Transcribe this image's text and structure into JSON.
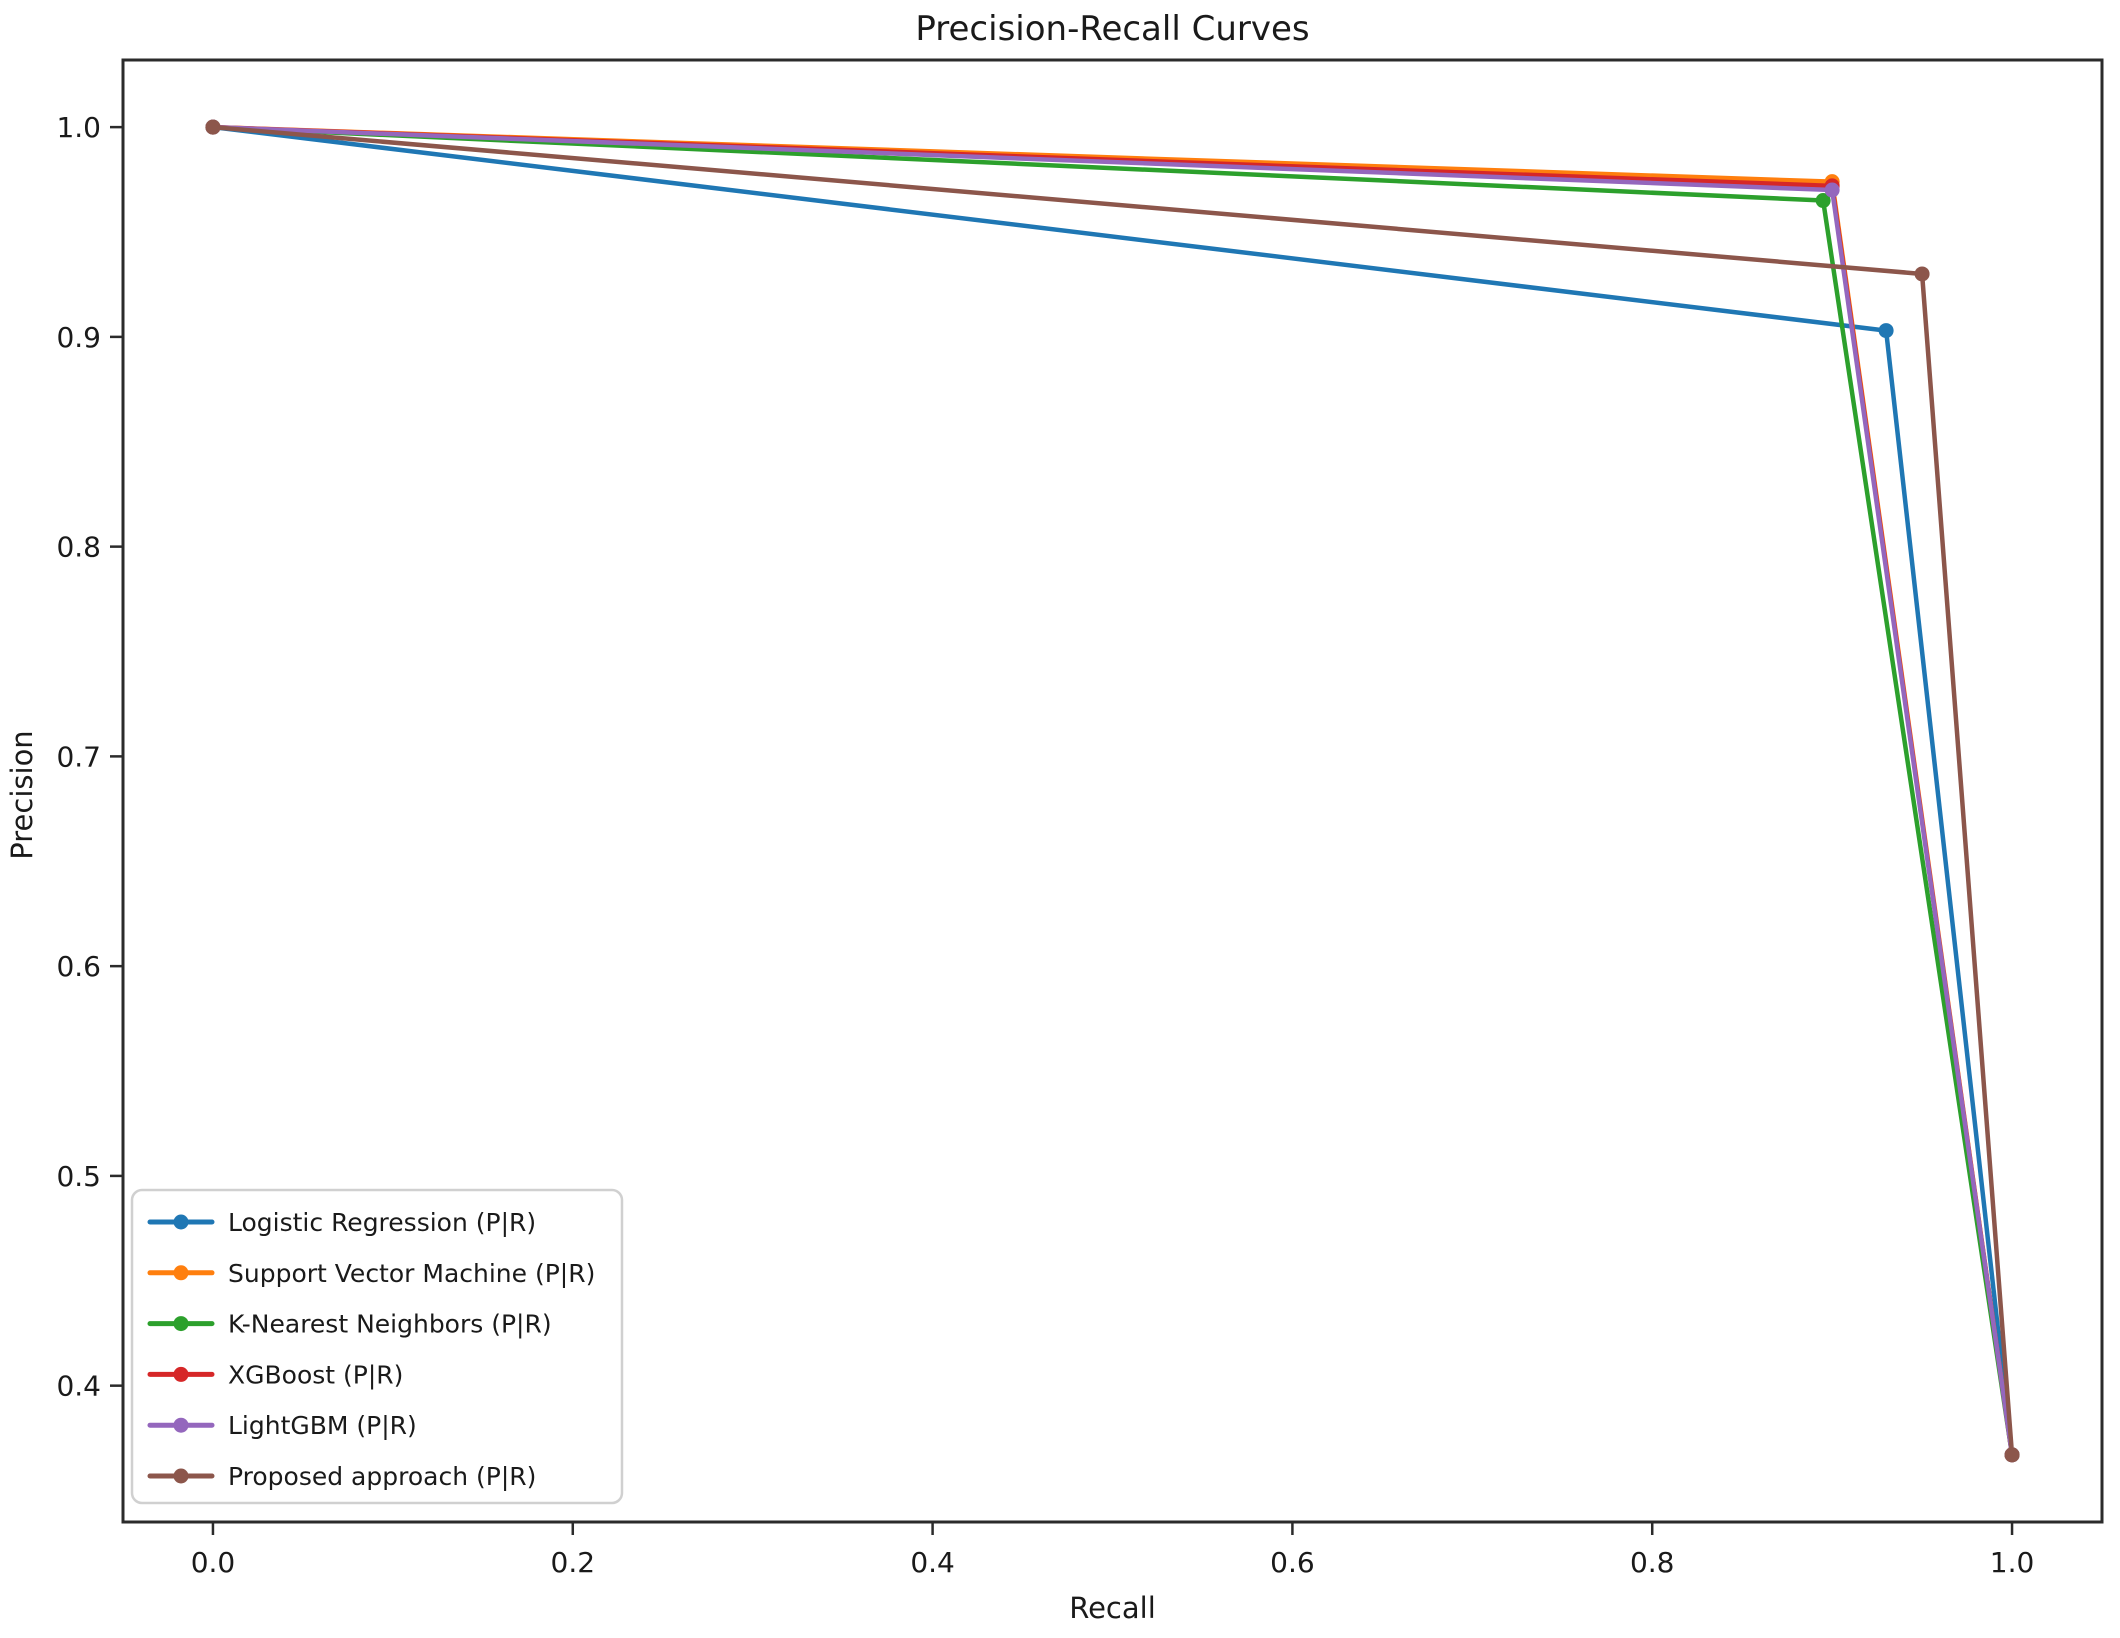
{
  "page": {
    "background": "#ffffff",
    "text_color": "#1a1a1a",
    "axis_color": "#2b2b2b",
    "legend_border_color": "#cccccc"
  },
  "chart_data": {
    "type": "line",
    "title": "Precision-Recall Curves",
    "xlabel": "Recall",
    "ylabel": "Precision",
    "xlim": [
      -0.05,
      1.05
    ],
    "ylim": [
      0.335,
      1.032
    ],
    "grid": false,
    "legend_position": "lower-left",
    "marker": "o",
    "xticks": {
      "values": [
        0.0,
        0.2,
        0.4,
        0.6,
        0.8,
        1.0
      ],
      "labels": [
        "0.0",
        "0.2",
        "0.4",
        "0.6",
        "0.8",
        "1.0"
      ]
    },
    "yticks": {
      "values": [
        0.4,
        0.5,
        0.6,
        0.7,
        0.8,
        0.9,
        1.0
      ],
      "labels": [
        "0.4",
        "0.5",
        "0.6",
        "0.7",
        "0.8",
        "0.9",
        "1.0"
      ]
    },
    "series": [
      {
        "name": "Logistic Regression (P|R)",
        "color": "#1f77b4",
        "points": [
          [
            0.0,
            1.0
          ],
          [
            0.93,
            0.903
          ],
          [
            1.0,
            0.367
          ]
        ]
      },
      {
        "name": "Support Vector Machine (P|R)",
        "color": "#ff7f0e",
        "points": [
          [
            0.0,
            1.0
          ],
          [
            0.9,
            0.974
          ],
          [
            1.0,
            0.367
          ]
        ]
      },
      {
        "name": "K-Nearest Neighbors (P|R)",
        "color": "#2ca02c",
        "points": [
          [
            0.0,
            1.0
          ],
          [
            0.895,
            0.965
          ],
          [
            1.0,
            0.367
          ]
        ]
      },
      {
        "name": "XGBoost (P|R)",
        "color": "#d62728",
        "points": [
          [
            0.0,
            1.0
          ],
          [
            0.9,
            0.972
          ],
          [
            1.0,
            0.367
          ]
        ]
      },
      {
        "name": "LightGBM (P|R)",
        "color": "#9467bd",
        "points": [
          [
            0.0,
            1.0
          ],
          [
            0.9,
            0.97
          ],
          [
            1.0,
            0.367
          ]
        ]
      },
      {
        "name": "Proposed approach (P|R)",
        "color": "#8c564b",
        "points": [
          [
            0.0,
            1.0
          ],
          [
            0.95,
            0.93
          ],
          [
            1.0,
            0.367
          ]
        ]
      }
    ]
  }
}
